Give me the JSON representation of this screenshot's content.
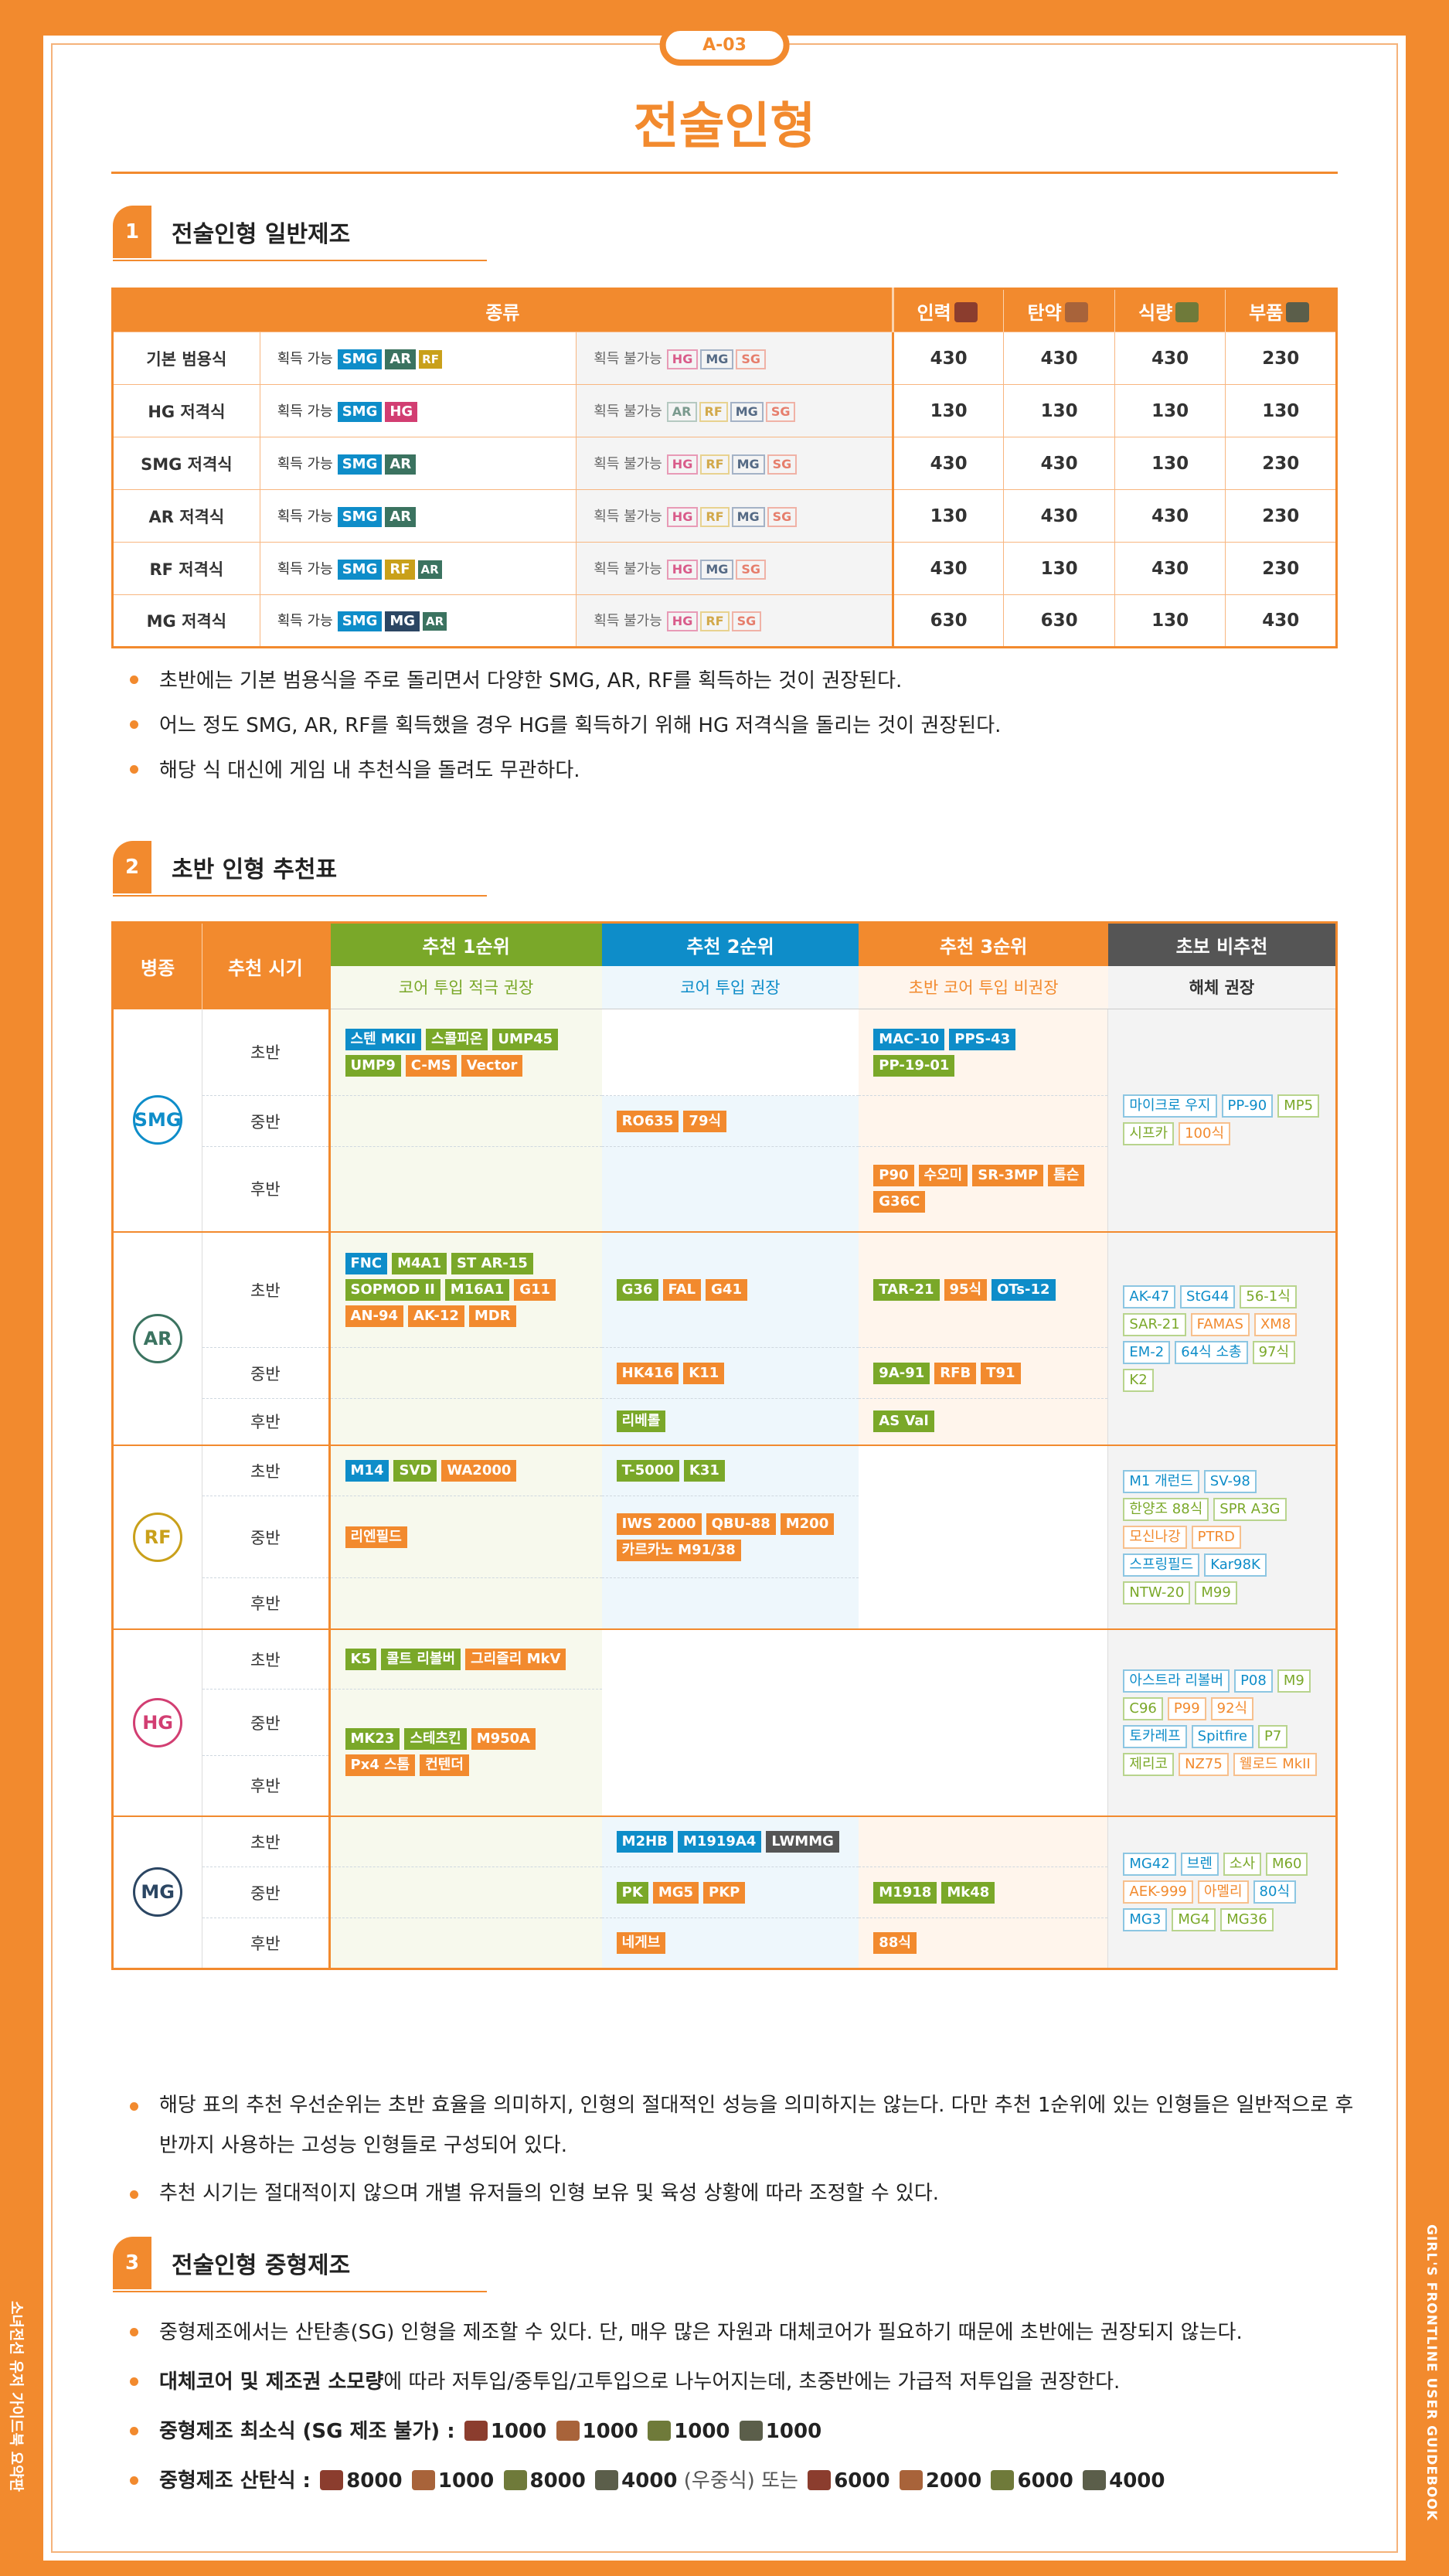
{
  "page_badge": "A-03",
  "page_title": "전술인형",
  "side_left": "소녀전선 유저 가이드북 요약판",
  "side_right": "GIRL'S FRONTLINE USER GUIDEBOOK",
  "sec1": {
    "num": "1",
    "title": "전술인형 일반제조"
  },
  "sec2": {
    "num": "2",
    "title": "초반 인형 추천표"
  },
  "sec3": {
    "num": "3",
    "title": "전술인형 중형제조"
  },
  "t1": {
    "h_kind": "종류",
    "h_manpower": "인력",
    "h_ammo": "탄약",
    "h_ration": "식량",
    "h_parts": "부품",
    "avail": "획득 가능",
    "unavail": "획득 불가능",
    "rows": [
      {
        "k": "기본 범용식",
        "a": [
          "SMG",
          "AR",
          "RF"
        ],
        "n": [
          "HG",
          "MG",
          "SG"
        ],
        "v": [
          "430",
          "430",
          "430",
          "230"
        ]
      },
      {
        "k": "HG 저격식",
        "a": [
          "SMG",
          "HG"
        ],
        "n": [
          "AR",
          "RF",
          "MG",
          "SG"
        ],
        "v": [
          "130",
          "130",
          "130",
          "130"
        ]
      },
      {
        "k": "SMG 저격식",
        "a": [
          "SMG",
          "AR"
        ],
        "n": [
          "HG",
          "RF",
          "MG",
          "SG"
        ],
        "v": [
          "430",
          "430",
          "130",
          "230"
        ]
      },
      {
        "k": "AR 저격식",
        "a": [
          "SMG",
          "AR"
        ],
        "n": [
          "HG",
          "RF",
          "MG",
          "SG"
        ],
        "v": [
          "130",
          "430",
          "430",
          "230"
        ]
      },
      {
        "k": "RF 저격식",
        "a": [
          "SMG",
          "RF",
          "AR"
        ],
        "n": [
          "HG",
          "MG",
          "SG"
        ],
        "v": [
          "430",
          "130",
          "430",
          "230"
        ]
      },
      {
        "k": "MG 저격식",
        "a": [
          "SMG",
          "MG",
          "AR"
        ],
        "n": [
          "HG",
          "RF",
          "SG"
        ],
        "v": [
          "630",
          "630",
          "130",
          "430"
        ]
      }
    ]
  },
  "notes1": [
    "초반에는 기본 범용식을 주로 돌리면서 다양한 SMG, AR, RF를 획득하는 것이 권장된다.",
    "어느 정도 SMG, AR, RF를 획득했을 경우 HG를 획득하기 위해 HG 저격식을 돌리는 것이 권장된다.",
    "해당 식 대신에 게임 내 추천식을 돌려도 무관하다."
  ],
  "t2": {
    "h_branch": "병종",
    "h_time": "추천 시기",
    "h_r1": "추천 1순위",
    "h_r2": "추천 2순위",
    "h_r3": "추천 3순위",
    "h_nr": "초보 비추천",
    "s_r1": "코어 투입 적극 권장",
    "s_r2": "코어 투입 권장",
    "s_r3": "초반 코어 투입 비권장",
    "s_nr": "해체 권장",
    "early": "초반",
    "mid": "중반",
    "late": "후반",
    "smg": {
      "name": "SMG",
      "e1": [
        "스텐 MKII",
        "스콜피온",
        "UMP45",
        "UMP9",
        "C-MS",
        "Vector"
      ],
      "e3": [
        "MAC-10",
        "PPS-43",
        "PP-19-01"
      ],
      "m2": [
        "RO635",
        "79식"
      ],
      "l3": [
        "P90",
        "수오미",
        "SR-3MP",
        "톰슨",
        "G36C"
      ],
      "nr": [
        "마이크로 우지",
        "PP-90",
        "MP5",
        "시프카",
        "100식"
      ]
    },
    "ar": {
      "name": "AR",
      "e1": [
        "FNC",
        "M4A1",
        "ST AR-15",
        "SOPMOD II",
        "M16A1",
        "G11",
        "AN-94",
        "AK-12",
        "MDR"
      ],
      "e2": [
        "G36",
        "FAL",
        "G41"
      ],
      "e3": [
        "TAR-21",
        "95식",
        "OTs-12"
      ],
      "m2": [
        "HK416",
        "K11"
      ],
      "m3": [
        "9A-91",
        "RFB",
        "T91"
      ],
      "l2": [
        "리베롤"
      ],
      "l3": [
        "AS Val"
      ],
      "nr": [
        "AK-47",
        "StG44",
        "56-1식",
        "SAR-21",
        "FAMAS",
        "XM8",
        "EM-2",
        "64식 소총",
        "97식",
        "K2"
      ]
    },
    "rf": {
      "name": "RF",
      "e1": [
        "M14",
        "SVD",
        "WA2000"
      ],
      "e2": [
        "T-5000",
        "K31"
      ],
      "m1": [
        "리엔필드"
      ],
      "m2": [
        "IWS 2000",
        "QBU-88",
        "M200",
        "카르카노 M91/38"
      ],
      "nr": [
        "M1 개런드",
        "SV-98",
        "한양조 88식",
        "SPR A3G",
        "모신나강",
        "PTRD",
        "스프링필드",
        "Kar98K",
        "NTW-20",
        "M99"
      ]
    },
    "hg": {
      "name": "HG",
      "e1": [
        "K5",
        "콜트 리볼버",
        "그리즐리 MkV"
      ],
      "ml1": [
        "MK23",
        "스테츠킨",
        "M950A",
        "Px4 스톰",
        "컨텐더"
      ],
      "nr": [
        "아스트라 리볼버",
        "P08",
        "M9",
        "C96",
        "P99",
        "92식",
        "토카레프",
        "Spitfire",
        "P7",
        "제리코",
        "NZ75",
        "웰로드 MkII"
      ]
    },
    "mg": {
      "name": "MG",
      "e2": [
        "M2HB",
        "M1919A4",
        "LWMMG"
      ],
      "m2": [
        "PK",
        "MG5",
        "PKP"
      ],
      "m3": [
        "M1918",
        "Mk48"
      ],
      "l2": [
        "네게브"
      ],
      "l3": [
        "88식"
      ],
      "nr": [
        "MG42",
        "브렌",
        "소사",
        "M60",
        "AEK-999",
        "아멜리",
        "80식",
        "MG3",
        "MG4",
        "MG36"
      ]
    }
  },
  "notes2": [
    "해당 표의 추천 우선순위는 초반 효율을 의미하지, 인형의 절대적인 성능을 의미하지는 않는다. 다만 추천 1순위에 있는 인형들은 일반적으로 후반까지 사용하는 고성능 인형들로 구성되어 있다.",
    "추천 시기는 절대적이지 않으며 개별 유저들의 인형 보유 및 육성 상황에 따라 조정할 수 있다."
  ],
  "notes3": {
    "n1": "중형제조에서는 산탄총(SG) 인형을 제조할 수 있다. 단, 매우 많은 자원과 대체코어가 필요하기 때문에 초반에는 권장되지 않는다.",
    "n2_bold": "대체코어 및 제조권 소모량",
    "n2_rest": "에 따라 저투입/중투입/고투입으로 나누어지는데, 초중반에는 가급적 저투입을 권장한다.",
    "n3_label": "중형제조 최소식 (SG 제조 불가) :",
    "n3_vals": [
      "1000",
      "1000",
      "1000",
      "1000"
    ],
    "n4_label": "중형제조 산탄식 :",
    "n4_vals": [
      "8000",
      "1000",
      "8000",
      "4000"
    ],
    "n4_mid": "(우중식) 또는",
    "n4_vals2": [
      "6000",
      "2000",
      "6000",
      "4000"
    ]
  }
}
